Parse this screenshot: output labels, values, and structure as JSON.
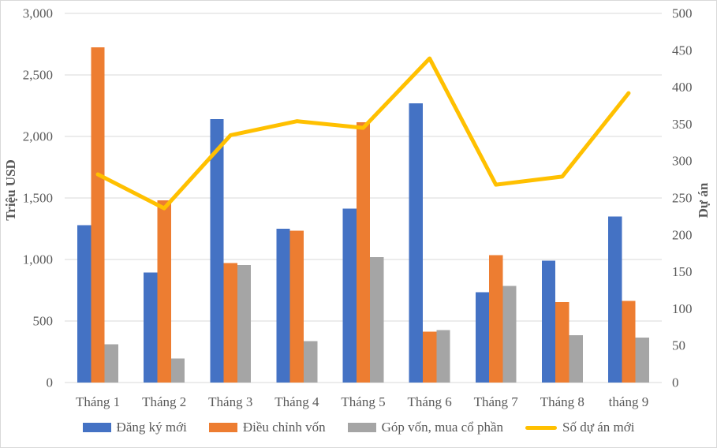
{
  "chart_data": {
    "type": "combo-bar-line",
    "categories": [
      "Tháng 1",
      "Tháng 2",
      "Tháng 3",
      "Tháng 4",
      "Tháng 5",
      "Tháng 6",
      "Tháng 7",
      "Tháng 8",
      "tháng 9"
    ],
    "series": [
      {
        "name": "Đăng ký mới",
        "type": "bar",
        "axis": "left",
        "color": "#4472C4",
        "values": [
          1280,
          895,
          2140,
          1250,
          1415,
          2270,
          735,
          990,
          1350
        ]
      },
      {
        "name": "Điều chỉnh vốn",
        "type": "bar",
        "axis": "left",
        "color": "#ED7D31",
        "values": [
          2725,
          1480,
          970,
          1235,
          2115,
          415,
          1035,
          655,
          665
        ]
      },
      {
        "name": "Góp vốn, mua cổ phần",
        "type": "bar",
        "axis": "left",
        "color": "#A5A5A5",
        "values": [
          310,
          195,
          955,
          335,
          1020,
          425,
          785,
          385,
          365
        ]
      },
      {
        "name": "Số dự án mới",
        "type": "line",
        "axis": "right",
        "color": "#FFC000",
        "values": [
          282,
          236,
          335,
          354,
          345,
          439,
          268,
          279,
          392
        ]
      }
    ],
    "left_axis": {
      "title": "Triệu USD",
      "min": 0,
      "max": 3000,
      "step": 500,
      "tick_labels": [
        "0",
        "500",
        "1,000",
        "1,500",
        "2,000",
        "2,500",
        "3,000"
      ]
    },
    "right_axis": {
      "title": "Dự án",
      "min": 0,
      "max": 500,
      "step": 50,
      "tick_labels": [
        "0",
        "50",
        "100",
        "150",
        "200",
        "250",
        "300",
        "350",
        "400",
        "450",
        "500"
      ]
    },
    "grid": {
      "horizontal": true,
      "color": "#D9D9D9"
    },
    "legend_position": "bottom",
    "text_color": "#595959",
    "background_color": "#FFFFFF"
  }
}
